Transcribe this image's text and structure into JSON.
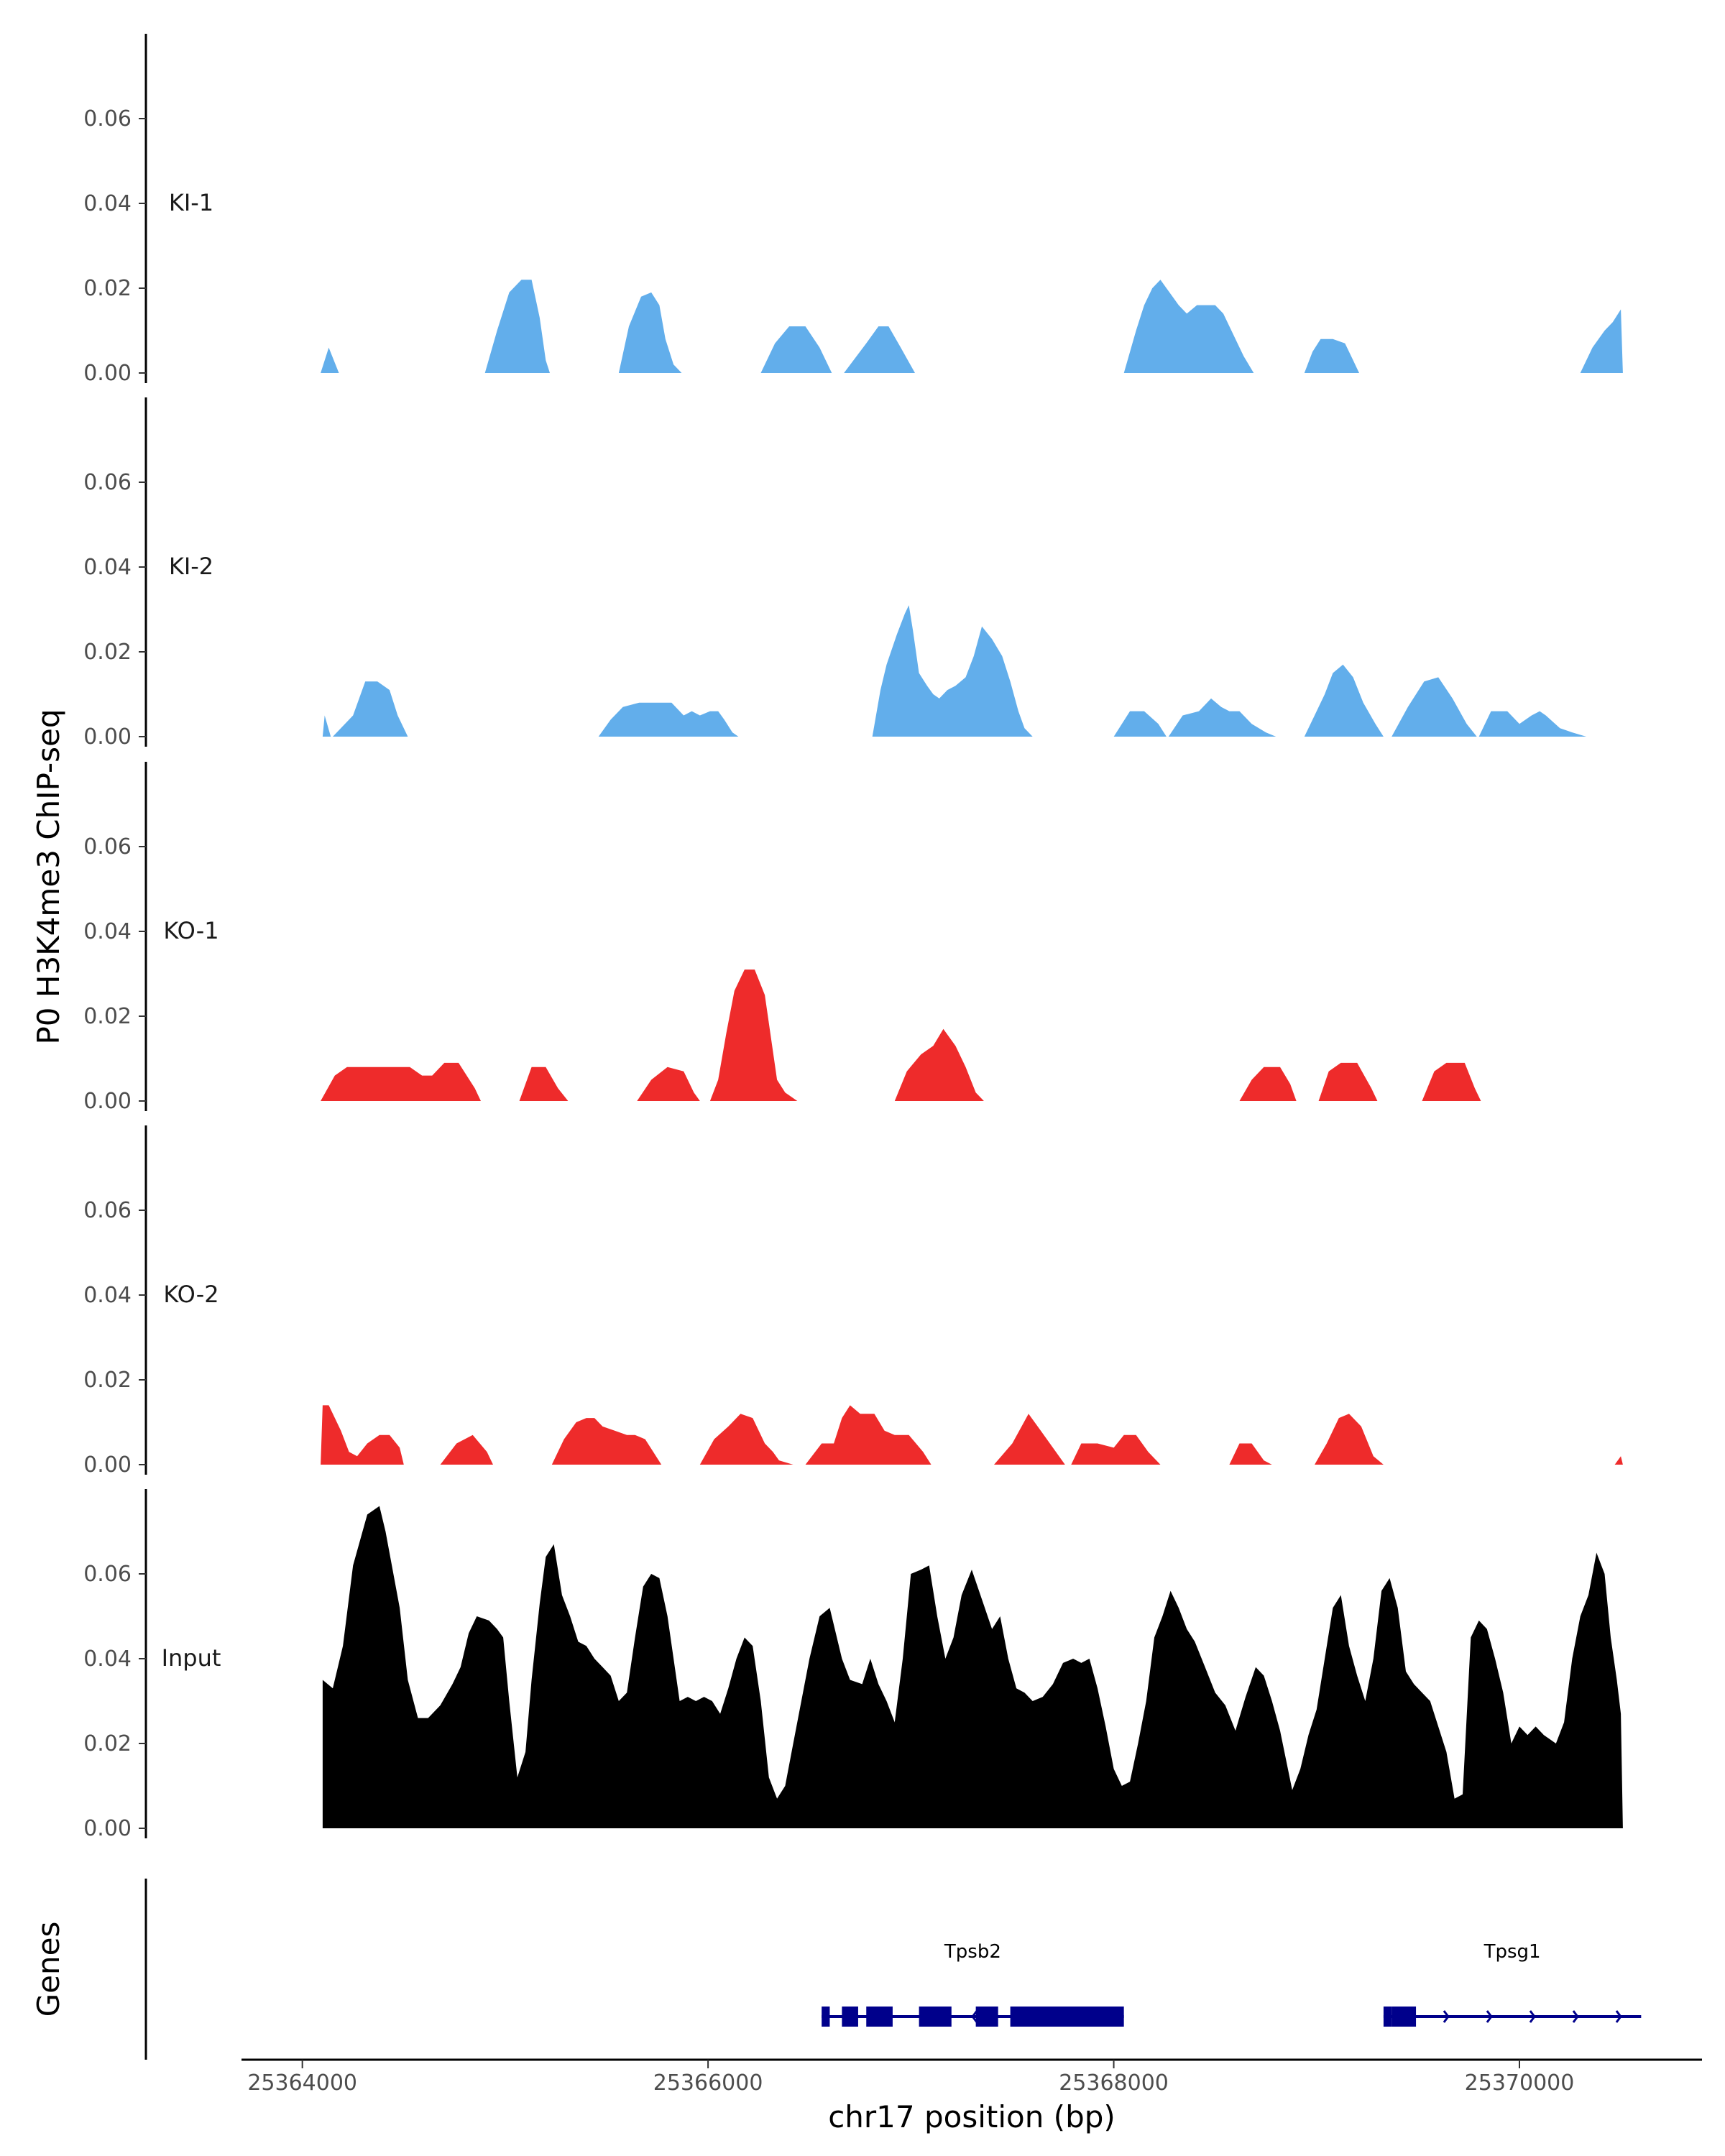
{
  "chart_data": {
    "type": "area",
    "ylabel": "P0 H3K4me3 ChIP-seq",
    "xlabel": "chr17 position (bp)",
    "genes_label": "Genes",
    "xlim": [
      25363700,
      25370900
    ],
    "ylim": [
      0,
      0.08
    ],
    "y_ticks": [
      0.0,
      0.02,
      0.04,
      0.06
    ],
    "y_tick_labels": [
      "0.00",
      "0.02",
      "0.04",
      "0.06"
    ],
    "x_ticks": [
      25364000,
      25366000,
      25368000,
      25370000
    ],
    "x_tick_labels": [
      "25364000",
      "25366000",
      "25368000",
      "25370000"
    ],
    "grid": false,
    "legend": "none",
    "tracks": [
      {
        "name": "KI-1",
        "color": "#62aeeb",
        "x": [
          25364090,
          25364130,
          25364180,
          25364900,
          25364960,
          25365020,
          25365080,
          25365130,
          25365170,
          25365200,
          25365220,
          25365560,
          25365610,
          25365670,
          25365720,
          25365760,
          25365790,
          25365830,
          25365870,
          25365880,
          25365900,
          25366260,
          25366330,
          25366400,
          25366480,
          25366550,
          25366610,
          25366660,
          25366670,
          25366780,
          25366840,
          25366890,
          25366950,
          25367020,
          25367090,
          25367170,
          25367180,
          25368050,
          25368110,
          25368150,
          25368190,
          25368230,
          25368260,
          25368290,
          25368320,
          25368360,
          25368410,
          25368450,
          25368500,
          25368540,
          25368590,
          25368640,
          25368690,
          25368740,
          25368770,
          25368800,
          25368940,
          25368980,
          25369020,
          25369080,
          25369140,
          25369180,
          25369210,
          25369230,
          25369240,
          25370300,
          25370360,
          25370420,
          25370460,
          25370500,
          25370510
        ],
        "y": [
          0.0,
          0.006,
          0.0,
          0.0,
          0.01,
          0.019,
          0.022,
          0.022,
          0.013,
          0.003,
          0.0,
          0.0,
          0.011,
          0.018,
          0.019,
          0.016,
          0.008,
          0.002,
          0.0,
          0.0,
          0.0,
          0.0,
          0.007,
          0.011,
          0.011,
          0.006,
          0.0,
          0.0,
          0.0,
          0.007,
          0.011,
          0.011,
          0.006,
          0.0,
          0.0,
          0.0,
          0.0,
          0.0,
          0.01,
          0.016,
          0.02,
          0.022,
          0.02,
          0.018,
          0.016,
          0.014,
          0.016,
          0.016,
          0.016,
          0.014,
          0.009,
          0.004,
          0.0,
          0.0,
          0.0,
          0.0,
          0.0,
          0.005,
          0.008,
          0.008,
          0.007,
          0.003,
          0.0,
          0.0,
          0.0,
          0.0,
          0.006,
          0.01,
          0.012,
          0.015,
          0.0
        ]
      },
      {
        "name": "KI-2",
        "color": "#62aeeb",
        "x": [
          25364100,
          25364110,
          25364140,
          25364150,
          25364250,
          25364310,
          25364370,
          25364430,
          25364470,
          25364520,
          25364560,
          25364580,
          25365460,
          25365520,
          25365580,
          25365660,
          25365740,
          25365820,
          25365880,
          25365920,
          25365960,
          25366010,
          25366050,
          25366080,
          25366120,
          25366150,
          25366160,
          25366810,
          25366850,
          25366880,
          25366930,
          25366970,
          25366990,
          25367010,
          25367040,
          25367080,
          25367110,
          25367140,
          25367180,
          25367220,
          25367270,
          25367310,
          25367350,
          25367400,
          25367450,
          25367490,
          25367530,
          25367560,
          25367600,
          25367620,
          25368000,
          25368080,
          25368150,
          25368220,
          25368260,
          25368270,
          25368340,
          25368420,
          25368480,
          25368530,
          25368570,
          25368620,
          25368680,
          25368750,
          25368800,
          25368820,
          25368940,
          25368990,
          25369040,
          25369080,
          25369130,
          25369180,
          25369230,
          25369290,
          25369330,
          25369350,
          25369370,
          25369450,
          25369530,
          25369600,
          25369670,
          25369740,
          25369790,
          25369800,
          25369860,
          25369940,
          25370000,
          25370060,
          25370100,
          25370130,
          25370200,
          25370260,
          25370330,
          25370390,
          25370440,
          25370500
        ],
        "y": [
          0.0,
          0.005,
          0.0,
          0.0,
          0.005,
          0.013,
          0.013,
          0.011,
          0.005,
          0.0,
          0.0,
          0.0,
          0.0,
          0.004,
          0.007,
          0.008,
          0.008,
          0.008,
          0.005,
          0.006,
          0.005,
          0.006,
          0.006,
          0.004,
          0.001,
          0.0,
          0.0,
          0.0,
          0.011,
          0.017,
          0.024,
          0.029,
          0.031,
          0.025,
          0.015,
          0.012,
          0.01,
          0.009,
          0.011,
          0.012,
          0.014,
          0.019,
          0.026,
          0.023,
          0.019,
          0.013,
          0.006,
          0.002,
          0.0,
          0.0,
          0.0,
          0.006,
          0.006,
          0.003,
          0.0,
          0.0,
          0.005,
          0.006,
          0.009,
          0.007,
          0.006,
          0.006,
          0.003,
          0.001,
          0.0,
          0.0,
          0.0,
          0.005,
          0.01,
          0.015,
          0.017,
          0.014,
          0.008,
          0.003,
          0.0,
          0.0,
          0.0,
          0.007,
          0.013,
          0.014,
          0.009,
          0.003,
          0.0,
          0.0,
          0.006,
          0.006,
          0.003,
          0.005,
          0.006,
          0.005,
          0.002,
          0.001,
          0.0,
          0.0,
          0.0,
          0.0
        ]
      },
      {
        "name": "KO-1",
        "color": "#ee2b2b",
        "x": [
          25364090,
          25364160,
          25364220,
          25364320,
          25364450,
          25364530,
          25364590,
          25364640,
          25364700,
          25364770,
          25364850,
          25364880,
          25365070,
          25365130,
          25365200,
          25365260,
          25365310,
          25365330,
          25365650,
          25365720,
          25365800,
          25365880,
          25365930,
          25365960,
          25366010,
          25366050,
          25366090,
          25366130,
          25366180,
          25366230,
          25366280,
          25366340,
          25366380,
          25366440,
          25366470,
          25366480,
          25366920,
          25366980,
          25367050,
          25367110,
          25367160,
          25367220,
          25367270,
          25367320,
          25367360,
          25367370,
          25368620,
          25368680,
          25368740,
          25368820,
          25368870,
          25368900,
          25368910,
          25369010,
          25369060,
          25369120,
          25369200,
          25369270,
          25369300,
          25369520,
          25369580,
          25369640,
          25369730,
          25369780,
          25369810
        ],
        "y": [
          0.0,
          0.006,
          0.008,
          0.008,
          0.008,
          0.008,
          0.006,
          0.006,
          0.009,
          0.009,
          0.003,
          0.0,
          0.0,
          0.008,
          0.008,
          0.003,
          0.0,
          0.0,
          0.0,
          0.005,
          0.008,
          0.007,
          0.002,
          0.0,
          0.0,
          0.005,
          0.016,
          0.026,
          0.031,
          0.031,
          0.025,
          0.005,
          0.002,
          0.0,
          0.0,
          0.0,
          0.0,
          0.007,
          0.011,
          0.013,
          0.017,
          0.013,
          0.008,
          0.002,
          0.0,
          0.0,
          0.0,
          0.005,
          0.008,
          0.008,
          0.004,
          0.0,
          0.0,
          0.0,
          0.007,
          0.009,
          0.009,
          0.003,
          0.0,
          0.0,
          0.007,
          0.009,
          0.009,
          0.003,
          0.0
        ]
      },
      {
        "name": "KO-2",
        "color": "#ee2b2b",
        "x": [
          25364090,
          25364100,
          25364130,
          25364190,
          25364230,
          25364270,
          25364320,
          25364380,
          25364430,
          25364480,
          25364500,
          25364680,
          25364760,
          25364840,
          25364910,
          25364940,
          25365230,
          25365290,
          25365350,
          25365400,
          25365440,
          25365480,
          25365540,
          25365600,
          25365640,
          25365690,
          25365730,
          25365770,
          25365790,
          25365960,
          25366030,
          25366100,
          25366160,
          25366220,
          25366280,
          25366320,
          25366350,
          25366420,
          25366460,
          25366480,
          25366560,
          25366620,
          25366660,
          25366700,
          25366750,
          25366820,
          25366870,
          25366920,
          25366990,
          25367060,
          25367100,
          25367150,
          25367190,
          25367230,
          25367410,
          25367500,
          25367580,
          25367640,
          25367700,
          25367760,
          25367790,
          25367840,
          25367920,
          25368000,
          25368050,
          25368110,
          25368170,
          25368230,
          25368260,
          25368570,
          25368620,
          25368680,
          25368740,
          25368780,
          25368800,
          25368990,
          25369050,
          25369110,
          25369160,
          25369220,
          25369280,
          25369330,
          25369370,
          25370470,
          25370500,
          25370510
        ],
        "y": [
          0.0,
          0.014,
          0.014,
          0.008,
          0.003,
          0.002,
          0.005,
          0.007,
          0.007,
          0.004,
          0.0,
          0.0,
          0.005,
          0.007,
          0.003,
          0.0,
          0.0,
          0.006,
          0.01,
          0.011,
          0.011,
          0.009,
          0.008,
          0.007,
          0.007,
          0.006,
          0.003,
          0.0,
          0.0,
          0.0,
          0.006,
          0.009,
          0.012,
          0.011,
          0.005,
          0.003,
          0.001,
          0.0,
          0.0,
          0.0,
          0.005,
          0.005,
          0.011,
          0.014,
          0.012,
          0.012,
          0.008,
          0.007,
          0.007,
          0.003,
          0.0,
          0.0,
          0.0,
          0.0,
          0.0,
          0.005,
          0.012,
          0.008,
          0.004,
          0.0,
          0.0,
          0.005,
          0.005,
          0.004,
          0.007,
          0.007,
          0.003,
          0.0,
          0.0,
          0.0,
          0.005,
          0.005,
          0.001,
          0.0,
          0.0,
          0.0,
          0.005,
          0.011,
          0.012,
          0.009,
          0.002,
          0.0,
          0.0,
          0.0,
          0.002,
          0.0
        ]
      },
      {
        "name": "Input",
        "color": "#000000",
        "x": [
          25364100,
          25364150,
          25364200,
          25364250,
          25364320,
          25364380,
          25364410,
          25364480,
          25364520,
          25364570,
          25364620,
          25364680,
          25364740,
          25364780,
          25364820,
          25364860,
          25364920,
          25364960,
          25364990,
          25365020,
          25365060,
          25365100,
          25365130,
          25365170,
          25365200,
          25365240,
          25365280,
          25365320,
          25365360,
          25365400,
          25365440,
          25365480,
          25365520,
          25365560,
          25365600,
          25365640,
          25365680,
          25365720,
          25365760,
          25365800,
          25365860,
          25365900,
          25365940,
          25365980,
          25366020,
          25366060,
          25366100,
          25366140,
          25366180,
          25366220,
          25366260,
          25366300,
          25366340,
          25366380,
          25366420,
          25366460,
          25366500,
          25366550,
          25366600,
          25366660,
          25366700,
          25366760,
          25366800,
          25366840,
          25366880,
          25366920,
          25366960,
          25367000,
          25367050,
          25367090,
          25367130,
          25367170,
          25367210,
          25367250,
          25367300,
          25367350,
          25367400,
          25367440,
          25367480,
          25367520,
          25367560,
          25367600,
          25367650,
          25367700,
          25367750,
          25367800,
          25367840,
          25367880,
          25367920,
          25367960,
          25368000,
          25368040,
          25368080,
          25368120,
          25368160,
          25368200,
          25368240,
          25368280,
          25368320,
          25368360,
          25368400,
          25368450,
          25368500,
          25368550,
          25368600,
          25368650,
          25368700,
          25368740,
          25368780,
          25368820,
          25368880,
          25368920,
          25368960,
          25369000,
          25369040,
          25369080,
          25369120,
          25369160,
          25369200,
          25369240,
          25369280,
          25369320,
          25369360,
          25369400,
          25369440,
          25369480,
          25369520,
          25369560,
          25369600,
          25369640,
          25369680,
          25369720,
          25369760,
          25369800,
          25369840,
          25369880,
          25369920,
          25369960,
          25370000,
          25370040,
          25370080,
          25370120,
          25370180,
          25370220,
          25370260,
          25370300,
          25370340,
          25370380,
          25370420,
          25370450,
          25370480,
          25370500,
          25370510
        ],
        "y": [
          0.035,
          0.033,
          0.043,
          0.062,
          0.074,
          0.076,
          0.07,
          0.052,
          0.035,
          0.026,
          0.026,
          0.029,
          0.034,
          0.038,
          0.046,
          0.05,
          0.049,
          0.047,
          0.045,
          0.03,
          0.012,
          0.018,
          0.035,
          0.053,
          0.064,
          0.067,
          0.055,
          0.05,
          0.044,
          0.043,
          0.04,
          0.038,
          0.036,
          0.03,
          0.032,
          0.045,
          0.057,
          0.06,
          0.059,
          0.05,
          0.03,
          0.031,
          0.03,
          0.031,
          0.03,
          0.027,
          0.033,
          0.04,
          0.045,
          0.043,
          0.03,
          0.012,
          0.007,
          0.01,
          0.02,
          0.03,
          0.04,
          0.05,
          0.052,
          0.04,
          0.035,
          0.034,
          0.04,
          0.034,
          0.03,
          0.025,
          0.04,
          0.06,
          0.061,
          0.062,
          0.05,
          0.04,
          0.045,
          0.055,
          0.061,
          0.054,
          0.047,
          0.05,
          0.04,
          0.033,
          0.032,
          0.03,
          0.031,
          0.034,
          0.039,
          0.04,
          0.039,
          0.04,
          0.033,
          0.024,
          0.014,
          0.01,
          0.011,
          0.02,
          0.03,
          0.045,
          0.05,
          0.056,
          0.052,
          0.047,
          0.044,
          0.038,
          0.032,
          0.029,
          0.023,
          0.031,
          0.038,
          0.036,
          0.03,
          0.023,
          0.009,
          0.014,
          0.022,
          0.028,
          0.04,
          0.052,
          0.055,
          0.043,
          0.036,
          0.03,
          0.04,
          0.056,
          0.059,
          0.052,
          0.037,
          0.034,
          0.032,
          0.03,
          0.024,
          0.018,
          0.007,
          0.008,
          0.045,
          0.049,
          0.047,
          0.04,
          0.032,
          0.02,
          0.024,
          0.022,
          0.024,
          0.022,
          0.02,
          0.025,
          0.04,
          0.05,
          0.055,
          0.065,
          0.06,
          0.045,
          0.035,
          0.027,
          0.0
        ]
      }
    ],
    "genes": [
      {
        "name": "Tpsb2",
        "start": 25366560,
        "end": 25368050,
        "strand": "-",
        "color": "#00008b",
        "exons": [
          [
            25366560,
            25366600
          ],
          [
            25366660,
            25366740
          ],
          [
            25366780,
            25366910
          ],
          [
            25367040,
            25367200
          ],
          [
            25367320,
            25367430
          ],
          [
            25367490,
            25368050
          ]
        ]
      },
      {
        "name": "Tpsg1",
        "start": 25369330,
        "end": 25370600,
        "strand": "+",
        "color": "#00008b",
        "exons": [
          [
            25369330,
            25369370
          ],
          [
            25369370,
            25369490
          ]
        ]
      }
    ]
  }
}
